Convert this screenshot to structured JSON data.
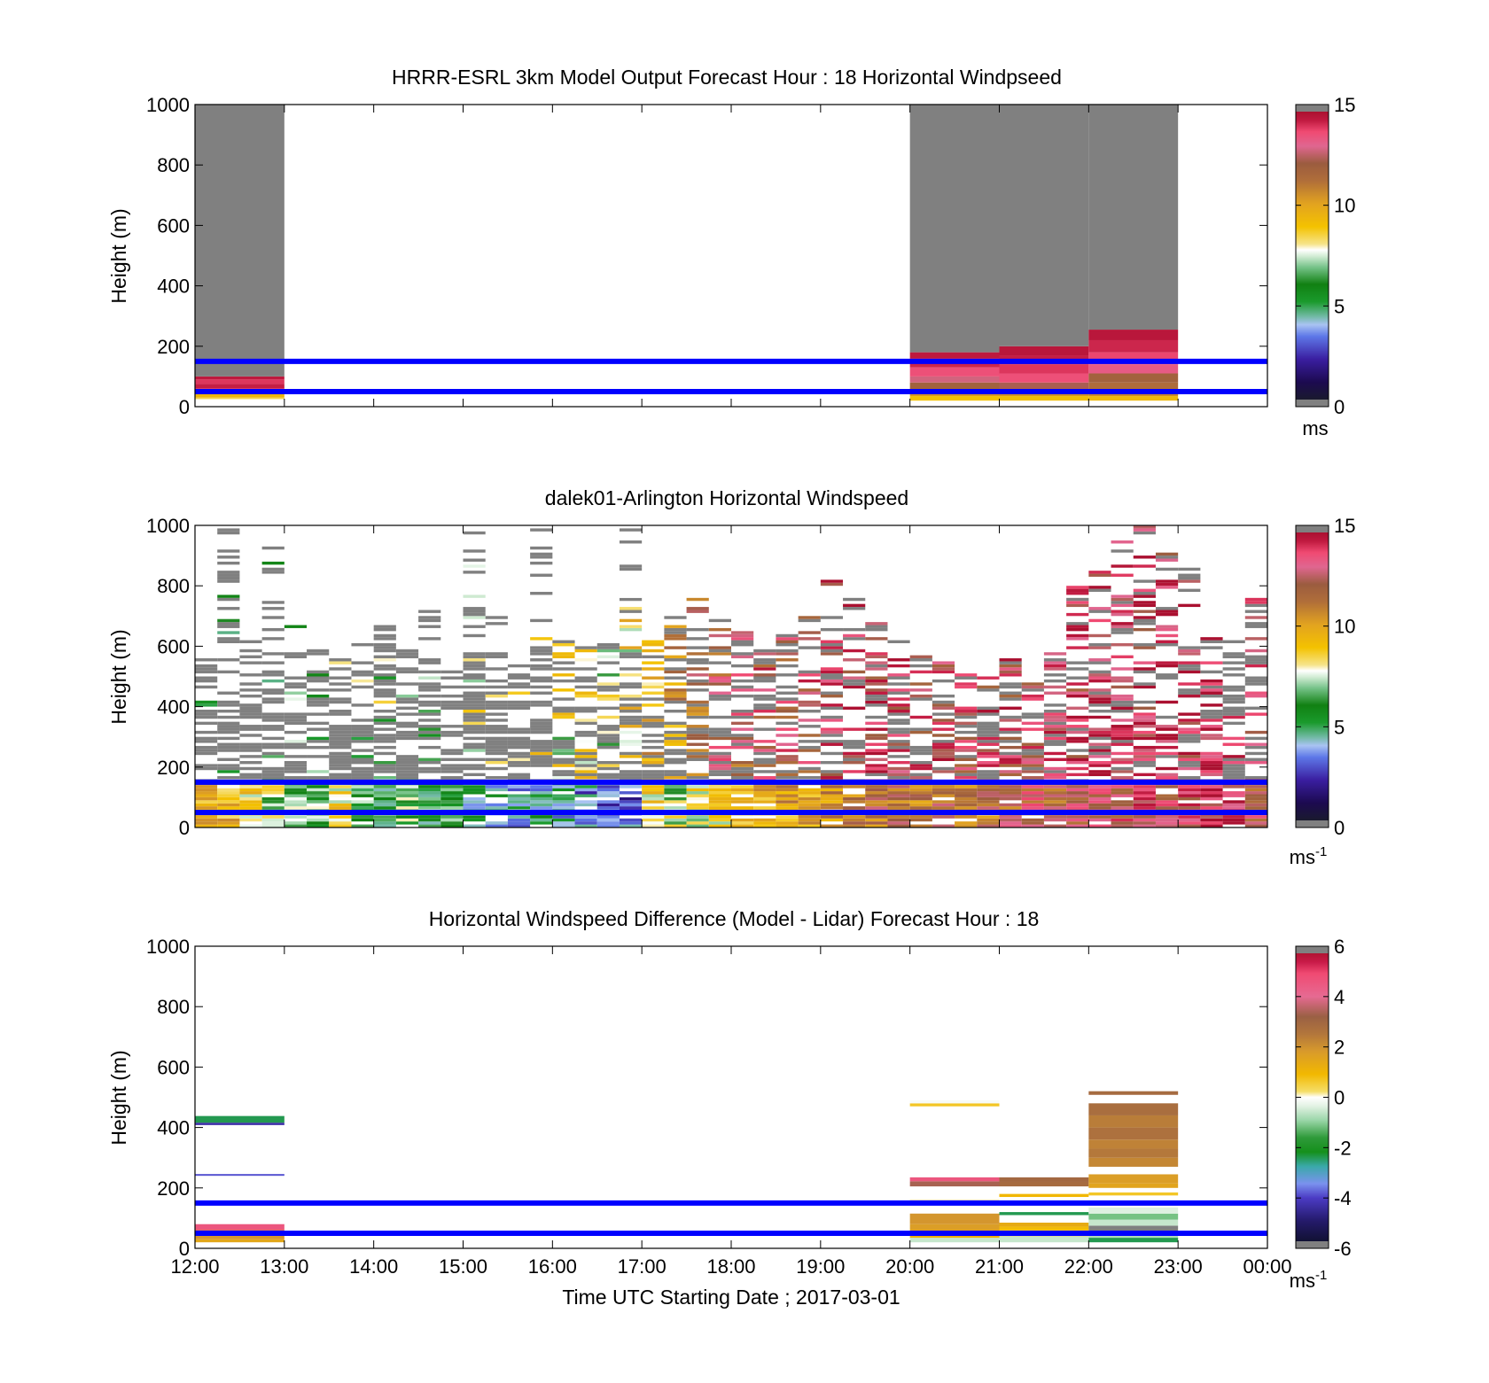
{
  "figure": {
    "xlabel": "Time UTC  Starting Date ; 2017-03-01"
  },
  "chart_data": [
    {
      "type": "heatmap",
      "title": "HRRR-ESRL 3km Model Output   Forecast Hour : 18 Horizontal Windpseed",
      "ylabel": "Height (m)",
      "ylim": [
        0,
        1000
      ],
      "yticks": [
        "0",
        "200",
        "400",
        "600",
        "800",
        "1000"
      ],
      "xlim_hours": [
        12,
        24
      ],
      "x_tick_hours": [
        12,
        13,
        14,
        15,
        16,
        17,
        18,
        19,
        20,
        21,
        22,
        23,
        24
      ],
      "show_xtick_labels": false,
      "colorbar": {
        "min": 0,
        "max": 15,
        "ticks": [
          "0",
          "5",
          "10",
          "15"
        ],
        "unit": "ms",
        "unit_sup": "",
        "palette": "speed"
      },
      "hlines_m": [
        50,
        150
      ],
      "columns": [
        {
          "x0": 12,
          "x1": 13,
          "top": 1000,
          "cells": [
            [
              25,
              30,
              8.5
            ],
            [
              30,
              45,
              9.5
            ],
            [
              45,
              60,
              13.5
            ],
            [
              60,
              75,
              14.5
            ],
            [
              75,
              90,
              14.2
            ],
            [
              90,
              100,
              14.6
            ],
            [
              100,
              1000,
              -1
            ]
          ]
        },
        {
          "x0": 20,
          "x1": 21,
          "top": 1000,
          "cells": [
            [
              20,
              35,
              9.0
            ],
            [
              35,
              55,
              10.5
            ],
            [
              55,
              80,
              12.0
            ],
            [
              80,
              100,
              13.0
            ],
            [
              100,
              130,
              13.8
            ],
            [
              130,
              160,
              14.4
            ],
            [
              160,
              180,
              14.6
            ],
            [
              180,
              1000,
              -1
            ]
          ]
        },
        {
          "x0": 21,
          "x1": 22,
          "top": 1000,
          "cells": [
            [
              20,
              35,
              9.2
            ],
            [
              35,
              55,
              10.6
            ],
            [
              55,
              80,
              12.5
            ],
            [
              80,
              110,
              13.8
            ],
            [
              110,
              140,
              14.2
            ],
            [
              140,
              170,
              14.5
            ],
            [
              170,
              200,
              14.7
            ],
            [
              200,
              1000,
              -1
            ]
          ]
        },
        {
          "x0": 22,
          "x1": 23,
          "top": 1000,
          "cells": [
            [
              20,
              35,
              9.4
            ],
            [
              35,
              55,
              10.8
            ],
            [
              55,
              80,
              11.5
            ],
            [
              80,
              110,
              12.0
            ],
            [
              110,
              140,
              13.5
            ],
            [
              140,
              180,
              14.0
            ],
            [
              180,
              220,
              14.4
            ],
            [
              220,
              255,
              14.7
            ],
            [
              255,
              1000,
              -1
            ]
          ]
        }
      ],
      "scatter": null
    },
    {
      "type": "heatmap",
      "title": "dalek01-Arlington  Horizontal Windspeed",
      "ylabel": "Height (m)",
      "ylim": [
        0,
        1000
      ],
      "yticks": [
        "0",
        "200",
        "400",
        "600",
        "800",
        "1000"
      ],
      "xlim_hours": [
        12,
        24
      ],
      "x_tick_hours": [
        12,
        13,
        14,
        15,
        16,
        17,
        18,
        19,
        20,
        21,
        22,
        23,
        24
      ],
      "show_xtick_labels": false,
      "colorbar": {
        "min": 0,
        "max": 15,
        "ticks": [
          "0",
          "5",
          "10",
          "15"
        ],
        "unit": "ms",
        "unit_sup": "-1",
        "palette": "speed"
      },
      "hlines_m": [
        50,
        150
      ],
      "columns": [],
      "scatter": {
        "cols_per_hour": 4,
        "col_top_m": [
          560,
          1000,
          620,
          1000,
          700,
          600,
          560,
          620,
          680,
          600,
          720,
          560,
          1000,
          700,
          560,
          1000,
          620,
          600,
          620,
          1000,
          640,
          700,
          760,
          700,
          660,
          600,
          640,
          720,
          820,
          780,
          700,
          620,
          580,
          560,
          520,
          500,
          560,
          520,
          640,
          820,
          880,
          980,
          1000,
          940,
          860,
          660,
          620,
          980
        ],
        "gray_frac": [
          0.95,
          0.9,
          0.9,
          0.85,
          0.9,
          0.9,
          0.95,
          0.9,
          0.85,
          0.95,
          0.9,
          0.95,
          0.85,
          0.9,
          0.9,
          0.85,
          0.6,
          0.7,
          0.6,
          0.6,
          0.5,
          0.45,
          0.4,
          0.45,
          0.5,
          0.45,
          0.4,
          0.35,
          0.3,
          0.35,
          0.4,
          0.45,
          0.4,
          0.45,
          0.4,
          0.4,
          0.35,
          0.3,
          0.3,
          0.35,
          0.25,
          0.2,
          0.2,
          0.3,
          0.25,
          0.2,
          0.7,
          0.5
        ],
        "low_mean": [
          9.5,
          9.3,
          8.5,
          7.5,
          7.0,
          6.5,
          8.5,
          6.0,
          5.5,
          6.5,
          5.5,
          6.0,
          5.0,
          4.5,
          4.0,
          4.5,
          4.0,
          3.5,
          3.0,
          3.0,
          8.5,
          7.5,
          8.0,
          8.5,
          9.0,
          9.5,
          10.0,
          10.0,
          10.5,
          11.0,
          11.5,
          11.5,
          11.0,
          11.5,
          11.0,
          11.5,
          12.0,
          12.5,
          12.0,
          12.5,
          12.5,
          13.0,
          13.5,
          13.0,
          13.5,
          14.0,
          14.0,
          12.5
        ],
        "high_mean": [
          5.0,
          5.5,
          6.0,
          6.0,
          6.0,
          6.0,
          6.5,
          6.5,
          7.0,
          7.0,
          7.0,
          7.0,
          7.5,
          7.5,
          7.5,
          8.0,
          8.0,
          8.0,
          8.0,
          8.5,
          9.5,
          10.5,
          11.5,
          12.5,
          12.5,
          13.0,
          13.0,
          13.0,
          13.5,
          13.5,
          13.5,
          13.5,
          13.0,
          13.5,
          13.0,
          13.5,
          13.5,
          13.5,
          13.5,
          13.5,
          14.0,
          14.0,
          14.0,
          14.0,
          14.0,
          14.5,
          14.5,
          14.0
        ]
      }
    },
    {
      "type": "heatmap",
      "title": "Horizontal Windspeed Difference (Model - Lidar) Forecast Hour : 18",
      "ylabel": "Height (m)",
      "ylim": [
        0,
        1000
      ],
      "yticks": [
        "0",
        "200",
        "400",
        "600",
        "800",
        "1000"
      ],
      "xlim_hours": [
        12,
        24
      ],
      "x_tick_hours": [
        12,
        13,
        14,
        15,
        16,
        17,
        18,
        19,
        20,
        21,
        22,
        23,
        24
      ],
      "x_tick_labels": [
        "12:00",
        "13:00",
        "14:00",
        "15:00",
        "16:00",
        "17:00",
        "18:00",
        "19:00",
        "20:00",
        "21:00",
        "22:00",
        "23:00",
        "00:00"
      ],
      "show_xtick_labels": true,
      "colorbar": {
        "min": -6,
        "max": 6,
        "ticks": [
          "-6",
          "-4",
          "-2",
          "0",
          "2",
          "4",
          "6"
        ],
        "unit": "ms",
        "unit_sup": "-1",
        "palette": "diff"
      },
      "hlines_m": [
        50,
        150
      ],
      "columns": [
        {
          "x0": 12,
          "x1": 13,
          "top": 440,
          "cells": [
            [
              20,
              30,
              1.5
            ],
            [
              30,
              45,
              2.0
            ],
            [
              45,
              60,
              2.5
            ],
            [
              60,
              80,
              4.8
            ],
            [
              240,
              246,
              -4.0
            ],
            [
              408,
              416,
              -4.5
            ],
            [
              416,
              438,
              -2.5
            ]
          ]
        },
        {
          "x0": 20,
          "x1": 21,
          "top": 500,
          "cells": [
            [
              20,
              35,
              -0.6
            ],
            [
              35,
              55,
              1.2
            ],
            [
              55,
              80,
              1.8
            ],
            [
              80,
              115,
              2.0
            ],
            [
              155,
              162,
              0.1
            ],
            [
              205,
              222,
              3.5
            ],
            [
              222,
              235,
              4.8
            ],
            [
              470,
              480,
              0.7
            ],
            [
              480,
              490,
              -0.1
            ]
          ]
        },
        {
          "x0": 21,
          "x1": 22,
          "top": 240,
          "cells": [
            [
              20,
              40,
              -0.6
            ],
            [
              40,
              60,
              0.6
            ],
            [
              60,
              72,
              0.9
            ],
            [
              72,
              85,
              1.4
            ],
            [
              110,
              120,
              -2.5
            ],
            [
              170,
              180,
              1.0
            ],
            [
              205,
              220,
              3.0
            ],
            [
              220,
              235,
              3.1
            ]
          ]
        },
        {
          "x0": 22,
          "x1": 23,
          "top": 520,
          "cells": [
            [
              20,
              35,
              -2.5
            ],
            [
              35,
              55,
              -0.8
            ],
            [
              55,
              75,
              -1.0
            ],
            [
              75,
              95,
              -0.6
            ],
            [
              95,
              115,
              -1.2
            ],
            [
              115,
              135,
              -0.4
            ],
            [
              135,
              160,
              -0.1
            ],
            [
              175,
              185,
              0.7
            ],
            [
              200,
              215,
              1.6
            ],
            [
              215,
              245,
              1.8
            ],
            [
              270,
              300,
              2.3
            ],
            [
              300,
              330,
              2.6
            ],
            [
              330,
              360,
              2.4
            ],
            [
              360,
              400,
              2.8
            ],
            [
              400,
              440,
              2.5
            ],
            [
              440,
              480,
              2.9
            ],
            [
              508,
              520,
              3.0
            ]
          ]
        }
      ],
      "scatter": null
    }
  ]
}
